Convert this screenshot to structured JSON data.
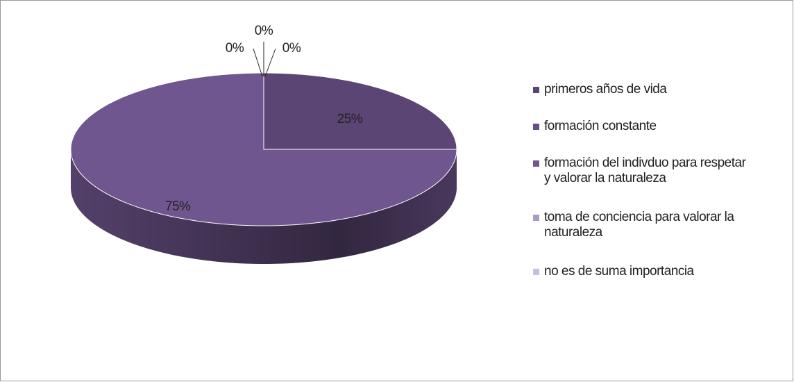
{
  "chart_data": {
    "type": "pie3d",
    "categories": [
      "primeros años de vida",
      "formación constante",
      "formación del indivduo para respetar y valorar la naturaleza",
      "toma de conciencia para valorar la naturaleza",
      "no es de suma importancia"
    ],
    "values": [
      25,
      0,
      75,
      0,
      0
    ],
    "value_labels": [
      "25%",
      "0%",
      "75%",
      "0%",
      "0%"
    ],
    "colors": [
      "#5b4574",
      "#66508a",
      "#70568e",
      "#a99cbf",
      "#c8c0d6"
    ],
    "legend": "right"
  }
}
